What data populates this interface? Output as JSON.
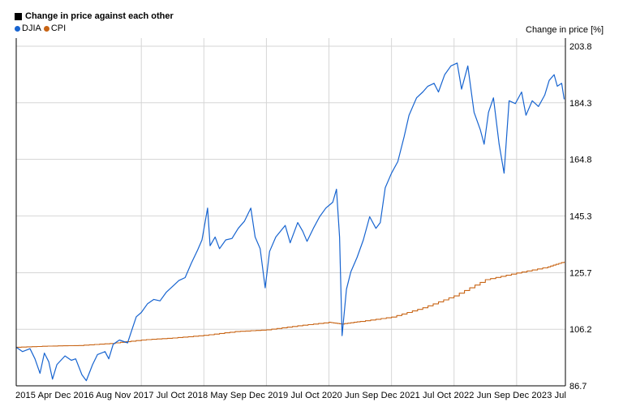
{
  "chart_data": {
    "type": "line",
    "title": "Change in price against each other",
    "ylabel": "Change in price [%]",
    "xlabel": "",
    "ylim": [
      86.7,
      203.8
    ],
    "y_ticks": [
      "86.7",
      "106.2",
      "125.7",
      "145.3",
      "164.8",
      "184.3",
      "203.8"
    ],
    "x_ticks": [
      "2015",
      "Apr",
      "Dec",
      "2016",
      "Aug",
      "Nov",
      "2017",
      "Jul",
      "Oct",
      "2018",
      "May",
      "Sep",
      "Dec",
      "2019",
      "Jul",
      "Oct",
      "2020",
      "Jun",
      "Sep",
      "Dec",
      "2021",
      "Jul",
      "Oct",
      "2022",
      "Jun",
      "Sep",
      "Dec",
      "2023",
      "Jul"
    ],
    "grid": true,
    "legend_position": "top-left",
    "series": [
      {
        "name": "DJIA",
        "color": "#1764d0",
        "points": [
          [
            2015.0,
            100.0
          ],
          [
            2015.1,
            98.5
          ],
          [
            2015.22,
            99.5
          ],
          [
            2015.3,
            96.0
          ],
          [
            2015.38,
            91.0
          ],
          [
            2015.45,
            98.0
          ],
          [
            2015.52,
            95.0
          ],
          [
            2015.58,
            89.0
          ],
          [
            2015.65,
            94.0
          ],
          [
            2015.78,
            97.0
          ],
          [
            2015.88,
            95.5
          ],
          [
            2015.95,
            96.0
          ],
          [
            2016.05,
            90.5
          ],
          [
            2016.12,
            88.5
          ],
          [
            2016.22,
            94.0
          ],
          [
            2016.3,
            97.5
          ],
          [
            2016.42,
            98.5
          ],
          [
            2016.48,
            96.0
          ],
          [
            2016.55,
            101.0
          ],
          [
            2016.65,
            102.5
          ],
          [
            2016.78,
            101.5
          ],
          [
            2016.85,
            106.0
          ],
          [
            2016.92,
            110.5
          ],
          [
            2017.0,
            112.0
          ],
          [
            2017.1,
            115.0
          ],
          [
            2017.2,
            116.5
          ],
          [
            2017.3,
            116.0
          ],
          [
            2017.4,
            119.0
          ],
          [
            2017.5,
            121.0
          ],
          [
            2017.6,
            123.0
          ],
          [
            2017.7,
            124.0
          ],
          [
            2017.8,
            129.0
          ],
          [
            2017.9,
            133.5
          ],
          [
            2017.97,
            137.0
          ],
          [
            2018.06,
            148.0
          ],
          [
            2018.1,
            135.0
          ],
          [
            2018.18,
            138.0
          ],
          [
            2018.25,
            134.0
          ],
          [
            2018.35,
            137.0
          ],
          [
            2018.45,
            137.5
          ],
          [
            2018.55,
            141.0
          ],
          [
            2018.65,
            143.5
          ],
          [
            2018.75,
            148.0
          ],
          [
            2018.82,
            138.0
          ],
          [
            2018.9,
            134.0
          ],
          [
            2018.98,
            120.5
          ],
          [
            2019.05,
            133.0
          ],
          [
            2019.15,
            138.0
          ],
          [
            2019.3,
            142.0
          ],
          [
            2019.38,
            136.0
          ],
          [
            2019.5,
            143.0
          ],
          [
            2019.58,
            140.0
          ],
          [
            2019.65,
            136.5
          ],
          [
            2019.75,
            141.0
          ],
          [
            2019.85,
            145.0
          ],
          [
            2019.95,
            148.0
          ],
          [
            2020.06,
            150.0
          ],
          [
            2020.12,
            154.5
          ],
          [
            2020.17,
            138.0
          ],
          [
            2020.21,
            104.0
          ],
          [
            2020.28,
            120.0
          ],
          [
            2020.35,
            126.0
          ],
          [
            2020.45,
            131.0
          ],
          [
            2020.55,
            137.0
          ],
          [
            2020.65,
            145.0
          ],
          [
            2020.75,
            141.0
          ],
          [
            2020.82,
            143.0
          ],
          [
            2020.9,
            155.0
          ],
          [
            2021.0,
            160.0
          ],
          [
            2021.1,
            164.0
          ],
          [
            2021.2,
            172.5
          ],
          [
            2021.28,
            180.0
          ],
          [
            2021.4,
            186.0
          ],
          [
            2021.5,
            188.0
          ],
          [
            2021.58,
            190.0
          ],
          [
            2021.68,
            191.0
          ],
          [
            2021.75,
            188.0
          ],
          [
            2021.85,
            194.0
          ],
          [
            2021.95,
            197.0
          ],
          [
            2022.05,
            198.0
          ],
          [
            2022.12,
            189.0
          ],
          [
            2022.22,
            197.0
          ],
          [
            2022.32,
            181.0
          ],
          [
            2022.42,
            175.0
          ],
          [
            2022.48,
            170.0
          ],
          [
            2022.55,
            181.0
          ],
          [
            2022.63,
            186.0
          ],
          [
            2022.72,
            170.0
          ],
          [
            2022.8,
            160.0
          ],
          [
            2022.88,
            185.0
          ],
          [
            2022.98,
            184.0
          ],
          [
            2023.08,
            188.0
          ],
          [
            2023.15,
            180.0
          ],
          [
            2023.25,
            185.0
          ],
          [
            2023.35,
            183.0
          ],
          [
            2023.45,
            187.0
          ],
          [
            2023.52,
            192.0
          ],
          [
            2023.6,
            194.0
          ],
          [
            2023.65,
            190.0
          ],
          [
            2023.72,
            191.0
          ],
          [
            2023.76,
            185.5
          ]
        ]
      },
      {
        "name": "CPI",
        "color": "#c86414",
        "points": [
          [
            2015.0,
            100.0
          ],
          [
            2015.5,
            100.4
          ],
          [
            2016.0,
            100.6
          ],
          [
            2016.5,
            101.3
          ],
          [
            2017.0,
            102.5
          ],
          [
            2017.5,
            103.2
          ],
          [
            2018.0,
            104.1
          ],
          [
            2018.5,
            105.4
          ],
          [
            2019.0,
            106.0
          ],
          [
            2019.5,
            107.4
          ],
          [
            2020.0,
            108.6
          ],
          [
            2020.2,
            108.0
          ],
          [
            2020.5,
            108.9
          ],
          [
            2021.0,
            110.4
          ],
          [
            2021.5,
            113.6
          ],
          [
            2022.0,
            117.7
          ],
          [
            2022.5,
            123.3
          ],
          [
            2023.0,
            125.6
          ],
          [
            2023.5,
            127.7
          ],
          [
            2023.76,
            129.5
          ]
        ]
      }
    ]
  }
}
